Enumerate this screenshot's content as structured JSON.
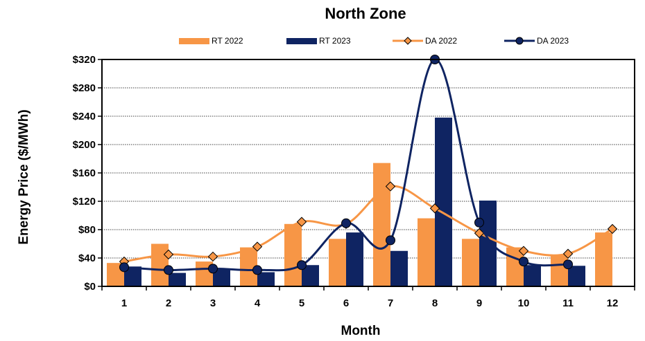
{
  "chart_data": {
    "type": "bar",
    "title": "North Zone",
    "xlabel": "Month",
    "ylabel": "Energy Price ($/MWh)",
    "ylim": [
      0,
      320
    ],
    "y_ticks": [
      "$0",
      "$40",
      "$80",
      "$120",
      "$160",
      "$200",
      "$240",
      "$280",
      "$320"
    ],
    "y_tick_values": [
      0,
      40,
      80,
      120,
      160,
      200,
      240,
      280,
      320
    ],
    "categories": [
      "1",
      "2",
      "3",
      "4",
      "5",
      "6",
      "7",
      "8",
      "9",
      "10",
      "11",
      "12"
    ],
    "grid": "horizontal",
    "legend_position": "top",
    "series": [
      {
        "name": "RT 2022",
        "kind": "bar",
        "color": "#F79646",
        "values": [
          33,
          60,
          35,
          55,
          88,
          67,
          174,
          96,
          67,
          55,
          44,
          76
        ]
      },
      {
        "name": "RT 2023",
        "kind": "bar",
        "color": "#0F2462",
        "values": [
          28,
          19,
          25,
          20,
          30,
          76,
          50,
          238,
          121,
          30,
          29,
          null
        ]
      },
      {
        "name": "DA 2022",
        "kind": "line",
        "marker": "diamond",
        "color": "#F79646",
        "values": [
          35,
          45,
          42,
          56,
          91,
          88,
          141,
          110,
          75,
          50,
          46,
          81
        ]
      },
      {
        "name": "DA 2023",
        "kind": "line",
        "marker": "circle",
        "color": "#0F2462",
        "values": [
          27,
          23,
          25,
          23,
          30,
          89,
          65,
          320,
          90,
          35,
          31,
          null
        ]
      }
    ]
  }
}
